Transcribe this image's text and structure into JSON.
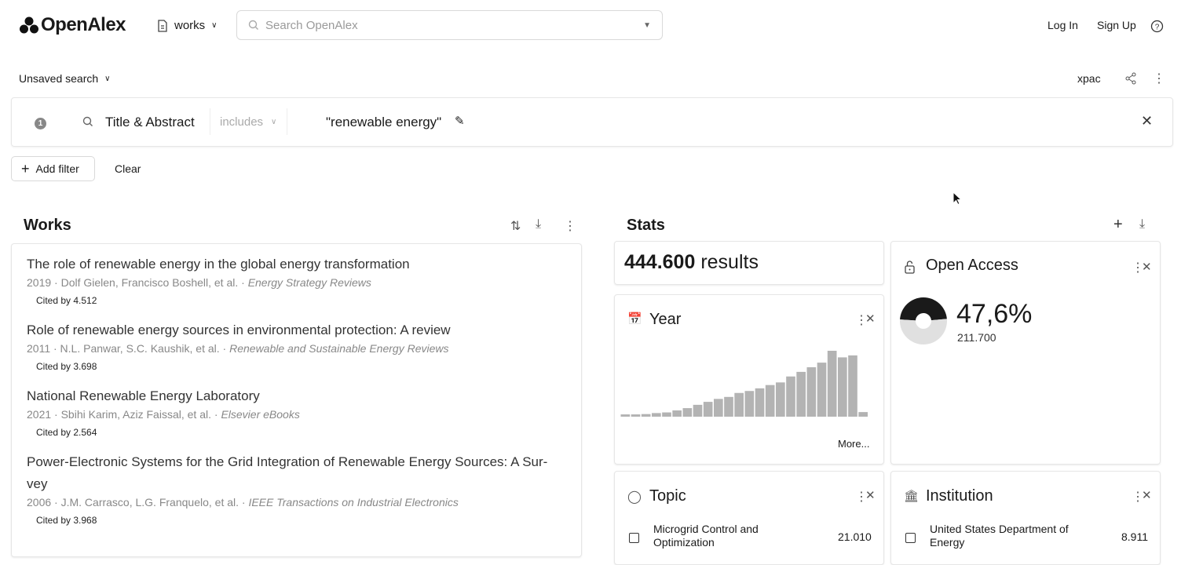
{
  "header": {
    "logo": "OpenAlex",
    "entity": "works",
    "search_placeholder": "Search OpenAlex",
    "login": "Log In",
    "signup": "Sign Up"
  },
  "search_bar": {
    "name": "Unsaved search",
    "user": "xpac"
  },
  "filter": {
    "index": "1",
    "field": "Title & Abstract",
    "operator": "includes",
    "value": "\"renewable energy\""
  },
  "actions": {
    "add_filter": "Add filter",
    "clear": "Clear"
  },
  "works": {
    "title": "Works",
    "items": [
      {
        "title": "The role of renewable energy in the global energy transformation",
        "meta": "2019 · Dolf Gielen, Francisco Boshell, et al. · ",
        "source": "Energy Strategy Reviews",
        "cited": "Cited by 4.512"
      },
      {
        "title": "Role of renewable energy sources in environmental protection: A review",
        "meta": "2011 · N.L. Panwar, S.C. Kaushik, et al. · ",
        "source": "Renewable and Sustainable Energy Reviews",
        "cited": "Cited by 3.698"
      },
      {
        "title": "National Renewable Energy Laboratory",
        "meta": "2021 · Sbihi Karim, Aziz Faissal, et al. · ",
        "source": "Elsevier eBooks",
        "cited": "Cited by 2.564"
      },
      {
        "title": "Power-Electronic Systems for the Grid Integration of Renewable Energy Sources: A Sur-vey",
        "meta": "2006 · J.M. Carrasco, L.G. Franquelo, et al. · ",
        "source": "IEEE Transactions on Industrial Electronics",
        "cited": "Cited by 3.968"
      }
    ]
  },
  "stats": {
    "title": "Stats",
    "count": "444.600",
    "count_suffix": "results",
    "year": {
      "title": "Year",
      "more": "More...",
      "bar_relative_heights": [
        3.5,
        3.5,
        4,
        5.5,
        6.5,
        9.5,
        13,
        18,
        22.5,
        27,
        30,
        36,
        39,
        43,
        48,
        52,
        61,
        68,
        75,
        82,
        100,
        90,
        93,
        7
      ],
      "bar_color": "#b3b3b3"
    },
    "open_access": {
      "title": "Open Access",
      "percent": "47,6%",
      "fraction": 0.476,
      "count": "211.700",
      "colors": {
        "filled": "#1a1a1a",
        "empty": "#e0e0e0"
      }
    },
    "topic": {
      "title": "Topic",
      "items": [
        {
          "label": "Microgrid Control and Optimization",
          "count": "21.010"
        }
      ]
    },
    "institution": {
      "title": "Institution",
      "items": [
        {
          "label": "United States Department of Energy",
          "count": "8.911"
        }
      ]
    }
  }
}
